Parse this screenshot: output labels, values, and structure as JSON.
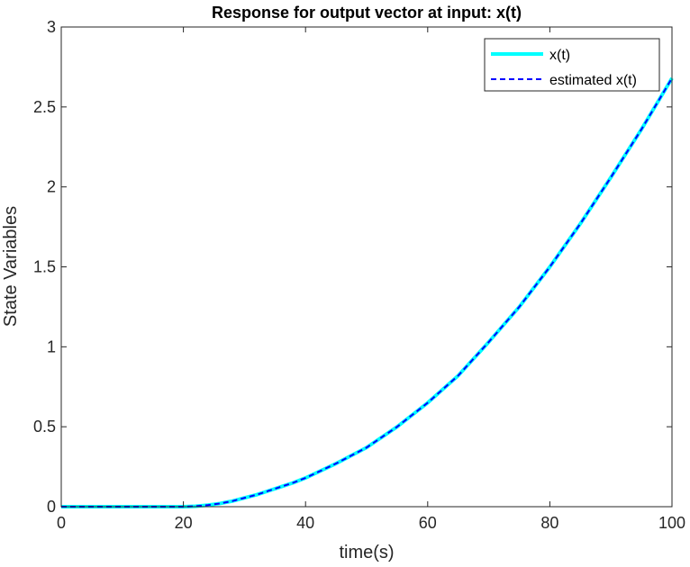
{
  "chart_data": {
    "type": "line",
    "title": "Response for output vector at input: x(t)",
    "xlabel": "time(s)",
    "ylabel": "State Variables",
    "xlim": [
      0,
      100
    ],
    "ylim": [
      0,
      3
    ],
    "xticks": [
      0,
      20,
      40,
      60,
      80,
      100
    ],
    "yticks": [
      0,
      0.5,
      1,
      1.5,
      2,
      2.5,
      3
    ],
    "xtick_labels": [
      "0",
      "20",
      "40",
      "60",
      "80",
      "100"
    ],
    "ytick_labels": [
      "0",
      "0.5",
      "1",
      "1.5",
      "2",
      "2.5",
      "3"
    ],
    "grid": false,
    "legend_position": "top-right",
    "series": [
      {
        "name": "x(t)",
        "color": "#00ffff",
        "style": "solid",
        "x": [
          0,
          10,
          20,
          22,
          24,
          26,
          28,
          30,
          32,
          34,
          36,
          38,
          40,
          45,
          50,
          55,
          60,
          65,
          70,
          75,
          80,
          85,
          90,
          95,
          100
        ],
        "y": [
          0,
          0,
          0,
          0.003,
          0.01,
          0.02,
          0.035,
          0.055,
          0.075,
          0.1,
          0.125,
          0.15,
          0.18,
          0.27,
          0.37,
          0.5,
          0.65,
          0.82,
          1.03,
          1.25,
          1.5,
          1.77,
          2.06,
          2.36,
          2.68
        ]
      },
      {
        "name": "estimated x(t)",
        "color": "#0000ff",
        "style": "dashed",
        "x": [
          0,
          10,
          20,
          22,
          24,
          26,
          28,
          30,
          32,
          34,
          36,
          38,
          40,
          45,
          50,
          55,
          60,
          65,
          70,
          75,
          80,
          85,
          90,
          95,
          100
        ],
        "y": [
          0,
          0,
          0,
          0.003,
          0.01,
          0.02,
          0.035,
          0.055,
          0.075,
          0.1,
          0.125,
          0.15,
          0.18,
          0.27,
          0.37,
          0.5,
          0.65,
          0.82,
          1.03,
          1.25,
          1.5,
          1.77,
          2.06,
          2.36,
          2.68
        ]
      }
    ]
  }
}
